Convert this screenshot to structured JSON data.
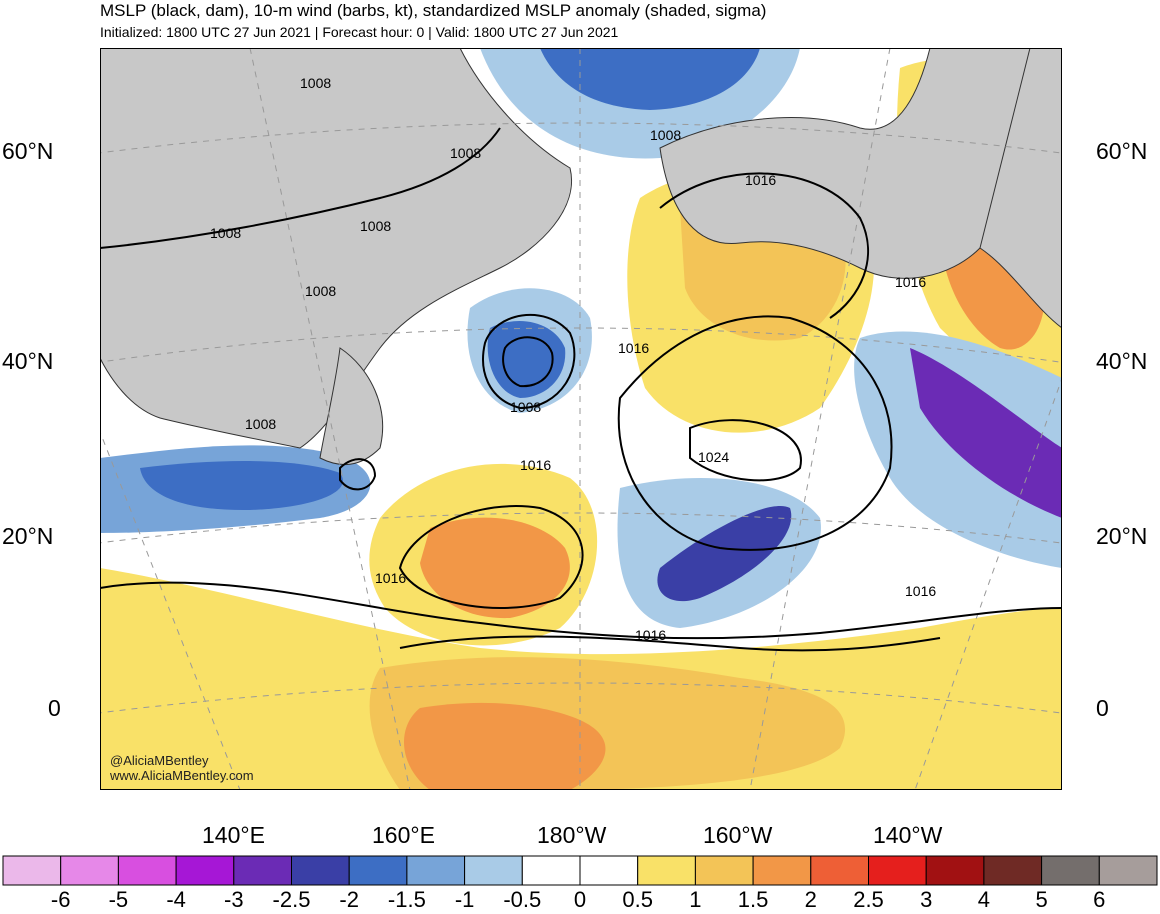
{
  "title": "MSLP (black, dam), 10-m wind (barbs, kt), standardized MSLP anomaly (shaded, sigma)",
  "subtitle": "Initialized: 1800 UTC 27 Jun 2021 | Forecast hour: 0 | Valid: 1800 UTC 27 Jun 2021",
  "lat_labels": [
    "60°N",
    "40°N",
    "20°N",
    "0"
  ],
  "lon_labels": [
    "140°E",
    "160°E",
    "180°W",
    "160°W",
    "140°W"
  ],
  "isobar_labels": [
    "1008",
    "1008",
    "1008",
    "1008",
    "1008",
    "1008",
    "1008",
    "1008",
    "1016",
    "1016",
    "1016",
    "1016",
    "1016",
    "1016",
    "1016",
    "1024"
  ],
  "credit": {
    "handle": "@AliciaMBentley",
    "website": "www.AliciaMBentley.com"
  },
  "colorbar": {
    "ticks": [
      "-6",
      "-5",
      "-4",
      "-3",
      "-2.5",
      "-2",
      "-1.5",
      "-1",
      "-0.5",
      "0",
      "0.5",
      "1",
      "1.5",
      "2",
      "2.5",
      "3",
      "4",
      "5",
      "6"
    ],
    "colors": [
      "#ebb8ea",
      "#e688e8",
      "#d84fe0",
      "#a617d6",
      "#6b2bb5",
      "#3a3fa6",
      "#3d6ec4",
      "#77a4d8",
      "#a9cbe7",
      "#ffffff",
      "#ffffff",
      "#f9e168",
      "#f3c457",
      "#f29747",
      "#ee5f36",
      "#e51f1d",
      "#a11112",
      "#6f2a25",
      "#746e6c",
      "#a69d9b"
    ]
  },
  "colors": {
    "land": "#c8c8c8",
    "neg_light": "#a9cbe7",
    "neg_med": "#77a4d8",
    "neg_dark": "#3d6ec4",
    "neg_deeper": "#3a3fa6",
    "purple": "#6b2bb5",
    "pos_light": "#f9e168",
    "pos_med": "#f3c457",
    "pos_strong": "#f29747",
    "pos_red": "#ee5f36"
  }
}
